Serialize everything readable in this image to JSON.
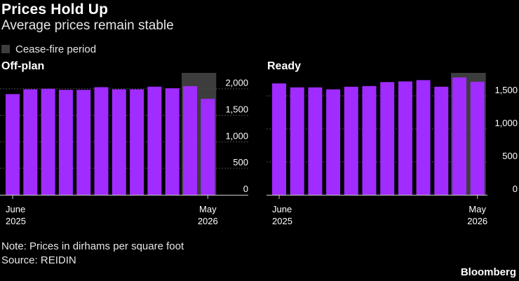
{
  "title": "Prices Hold Up",
  "subtitle": "Average prices remain stable",
  "legend": {
    "label": "Cease-fire period",
    "color": "#3d3d3d"
  },
  "colors": {
    "bar": "#a02cff",
    "shade": "#3d3d3d",
    "axis": "#cfcfcf",
    "grid": "#4a4a4a",
    "text": "#ffffff"
  },
  "note": "Note: Prices in dirhams per square foot",
  "source": "Source: REIDIN",
  "brand": "Bloomberg",
  "chart_data": [
    {
      "type": "bar",
      "panel_title": "Off-plan",
      "categories": [
        "Jun 2025",
        "Jul 2025",
        "Aug 2025",
        "Sep 2025",
        "Oct 2025",
        "Nov 2025",
        "Dec 2025",
        "Jan 2026",
        "Feb 2026",
        "Mar 2026",
        "Apr 2026",
        "May 2026"
      ],
      "values": [
        1900,
        1990,
        2000,
        1980,
        1980,
        2030,
        1990,
        1990,
        2040,
        2010,
        2050,
        1810
      ],
      "ylim": [
        0,
        2300
      ],
      "yticks": [
        "0",
        "500",
        "1,000",
        "1,500",
        "2,000"
      ],
      "ytick_values": [
        0,
        500,
        1000,
        1500,
        2000
      ],
      "xtick_labels": [
        {
          "category": "Jun 2025",
          "line1": "June",
          "line2": "2025"
        },
        {
          "category": "May 2026",
          "line1": "May",
          "line2": "2026"
        }
      ],
      "shaded_categories": [
        "Apr 2026",
        "May 2026"
      ],
      "grid": true
    },
    {
      "type": "bar",
      "panel_title": "Ready",
      "categories": [
        "Jun 2025",
        "Jul 2025",
        "Aug 2025",
        "Sep 2025",
        "Oct 2025",
        "Nov 2025",
        "Dec 2025",
        "Jan 2026",
        "Feb 2026",
        "Mar 2026",
        "Apr 2026",
        "May 2026"
      ],
      "values": [
        1690,
        1630,
        1630,
        1600,
        1640,
        1650,
        1710,
        1720,
        1740,
        1640,
        1780,
        1715
      ],
      "ylim": [
        0,
        1850
      ],
      "yticks": [
        "0",
        "500",
        "1,000",
        "1,500"
      ],
      "ytick_values": [
        0,
        500,
        1000,
        1500
      ],
      "xtick_labels": [
        {
          "category": "Jun 2025",
          "line1": "June",
          "line2": "2025"
        },
        {
          "category": "May 2026",
          "line1": "May",
          "line2": "2026"
        }
      ],
      "shaded_categories": [
        "Apr 2026",
        "May 2026"
      ],
      "grid": true
    }
  ]
}
